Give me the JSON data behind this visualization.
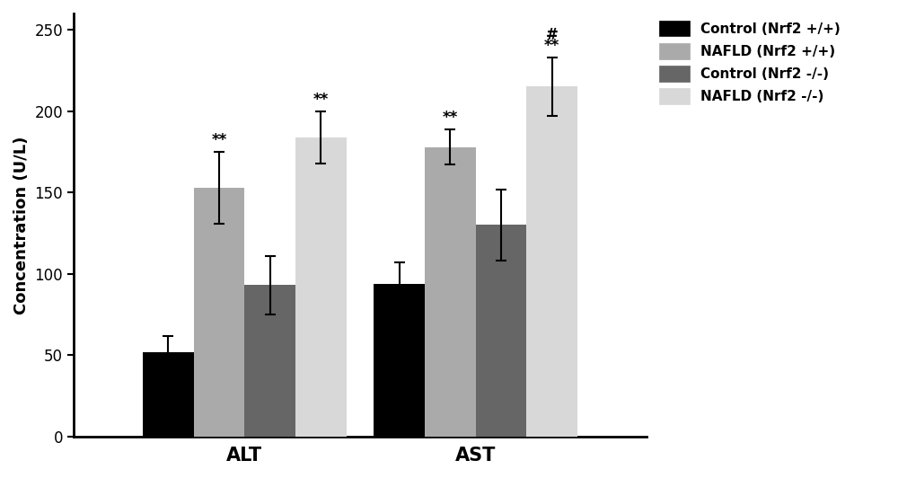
{
  "groups": [
    "ALT",
    "AST"
  ],
  "series": [
    {
      "label": "Control (Nrf2 +/+)",
      "color": "#000000",
      "values": [
        52,
        94
      ],
      "errors": [
        10,
        13
      ]
    },
    {
      "label": "NAFLD (Nrf2 +/+)",
      "color": "#aaaaaa",
      "values": [
        153,
        178
      ],
      "errors": [
        22,
        11
      ]
    },
    {
      "label": "Control (Nrf2 -/-)",
      "color": "#666666",
      "values": [
        93,
        130
      ],
      "errors": [
        18,
        22
      ]
    },
    {
      "label": "NAFLD (Nrf2 -/-)",
      "color": "#d8d8d8",
      "values": [
        184,
        215
      ],
      "errors": [
        16,
        18
      ]
    }
  ],
  "ylabel": "Concentration (U/L)",
  "ylim": [
    0,
    260
  ],
  "yticks": [
    0,
    50,
    100,
    150,
    200,
    250
  ],
  "bar_width": 0.22,
  "group_centers": [
    0.38,
    1.38
  ],
  "annotations": {
    "ALT": {
      "NAFLD (Nrf2 +/+)": [
        "**"
      ],
      "NAFLD (Nrf2 -/-)": [
        "**"
      ]
    },
    "AST": {
      "NAFLD (Nrf2 +/+)": [
        "**"
      ],
      "NAFLD (Nrf2 -/-)": [
        "#",
        "**"
      ]
    }
  },
  "annotation_fontsize": 12,
  "xlabel_fontsize": 15,
  "ylabel_fontsize": 13,
  "tick_fontsize": 12,
  "legend_fontsize": 11,
  "background_color": "#ffffff"
}
